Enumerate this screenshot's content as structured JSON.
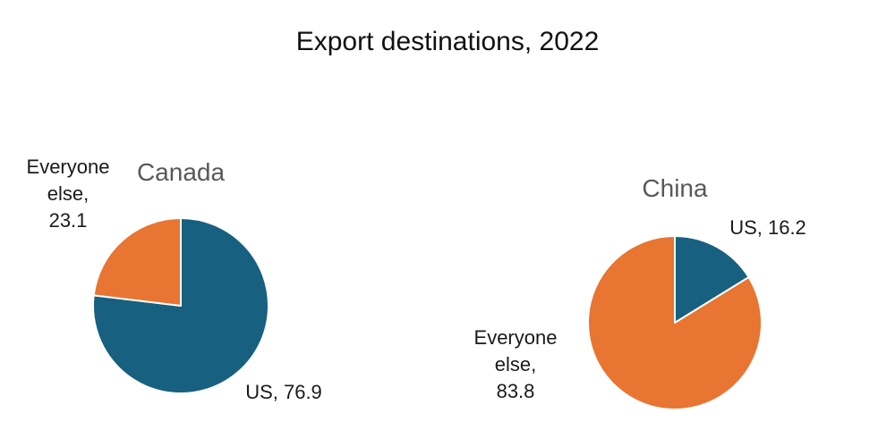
{
  "title": "Export destinations, 2022",
  "colors": {
    "us": "#17607f",
    "everyone_else": "#e87532",
    "slice_border": "#ffffff"
  },
  "chart_data": [
    {
      "type": "pie",
      "title": "Canada",
      "slices": [
        {
          "label": "US",
          "value": 76.9,
          "color": "#17607f",
          "label_lines": [
            "US, 76.9"
          ]
        },
        {
          "label": "Everyone else",
          "value": 23.1,
          "color": "#e87532",
          "label_lines": [
            "Everyone",
            "else,",
            "23.1"
          ]
        }
      ]
    },
    {
      "type": "pie",
      "title": "China",
      "slices": [
        {
          "label": "US",
          "value": 16.2,
          "color": "#17607f",
          "label_lines": [
            "US, 16.2"
          ]
        },
        {
          "label": "Everyone else",
          "value": 83.8,
          "color": "#e87532",
          "label_lines": [
            "Everyone",
            "else,",
            "83.8"
          ]
        }
      ]
    }
  ]
}
